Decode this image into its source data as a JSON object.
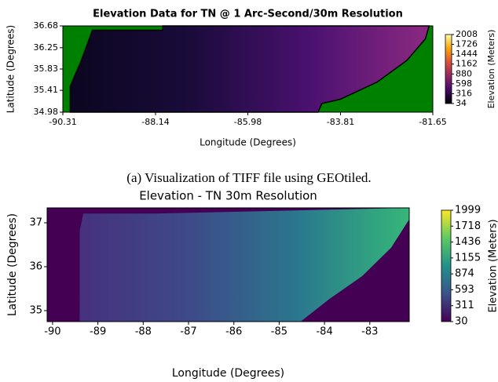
{
  "chart_data": [
    {
      "type": "heatmap",
      "title": "Elevation Data for TN @ 1 Arc-Second/30m Resolution",
      "x_label": "Longitude (Degrees)",
      "y_label": "Latitude (Degrees)",
      "xlim": [
        -90.31,
        -81.65
      ],
      "xticks": [
        -90.31,
        -88.14,
        -85.98,
        -83.81,
        -81.65
      ],
      "ylim": [
        34.98,
        36.68
      ],
      "yticks": [
        34.98,
        35.41,
        35.83,
        36.25,
        36.68
      ],
      "colorbar_label": "Elevation (Meters)",
      "clim": [
        34,
        2008
      ],
      "colorbar_ticks": [
        34,
        316,
        598,
        880,
        1162,
        1444,
        1726,
        2008
      ],
      "colormap": [
        "#000004",
        "#420a68",
        "#932667",
        "#dd513a",
        "#fca50a",
        "#fcffa4"
      ],
      "background": "#008000",
      "bold_title": true
    },
    {
      "type": "heatmap",
      "title": "Elevation - TN 30m Resolution",
      "x_label": "Longitude (Degrees)",
      "y_label": "Latitude (Degrees)",
      "xlim": [
        -90.12,
        -82.13
      ],
      "xticks": [
        -90,
        -89,
        -88,
        -87,
        -86,
        -85,
        -84,
        -83
      ],
      "ylim": [
        34.75,
        37.34
      ],
      "yticks": [
        35,
        36,
        37
      ],
      "colorbar_label": "Elevation (Meters)",
      "clim": [
        30,
        1999
      ],
      "colorbar_ticks": [
        30,
        311,
        593,
        874,
        1155,
        1436,
        1718,
        1999
      ],
      "colormap": [
        "#440154",
        "#3b528b",
        "#21918c",
        "#5ec962",
        "#fde725"
      ],
      "background": "#440154",
      "bold_title": false
    }
  ],
  "caption": "(a) Visualization of TIFF file using GEOtiled."
}
